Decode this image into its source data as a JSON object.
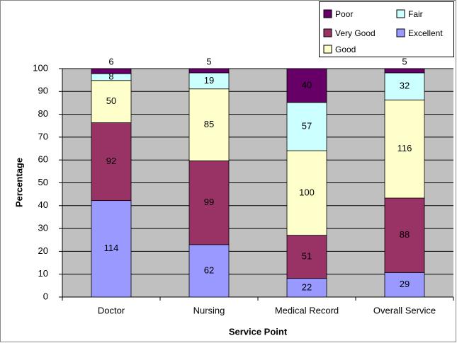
{
  "chart_data": {
    "type": "bar",
    "stacked": "percent",
    "x_label": "Service Point",
    "y_label": "Percentage",
    "categories": [
      "Doctor",
      "Nursing",
      "Medical Record",
      "Overall Service"
    ],
    "series": [
      {
        "name": "Excellent",
        "color": "#9999ff",
        "values": [
          114,
          62,
          22,
          29
        ]
      },
      {
        "name": "Very Good",
        "color": "#993366",
        "values": [
          92,
          99,
          51,
          88
        ]
      },
      {
        "name": "Good",
        "color": "#ffffcc",
        "values": [
          50,
          85,
          100,
          116
        ]
      },
      {
        "name": "Fair",
        "color": "#ccffff",
        "values": [
          8,
          19,
          57,
          32
        ]
      },
      {
        "name": "Poor",
        "color": "#660066",
        "values": [
          6,
          5,
          40,
          5
        ]
      }
    ],
    "ylim": [
      0,
      100
    ],
    "yticks": [
      0,
      10,
      20,
      30,
      40,
      50,
      60,
      70,
      80,
      90,
      100
    ],
    "grid": true
  }
}
